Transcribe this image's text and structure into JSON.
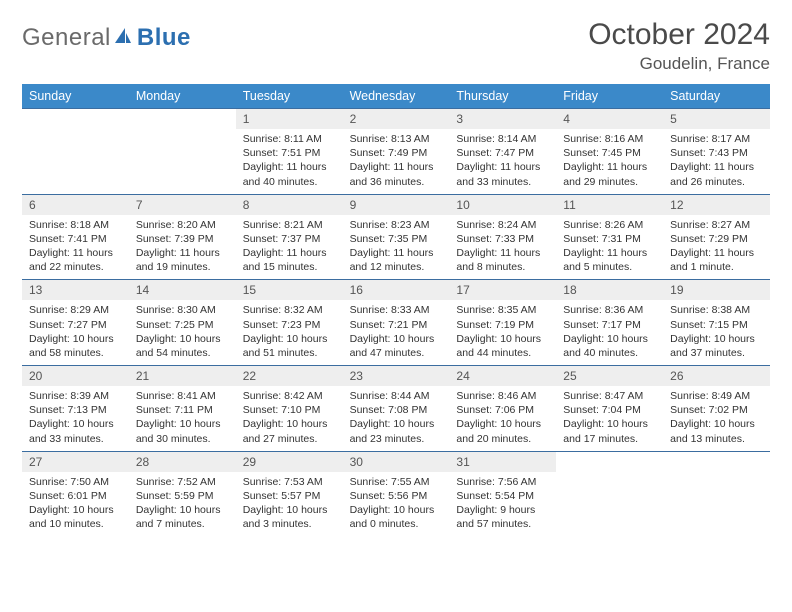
{
  "logo": {
    "text_general": "General",
    "text_blue": "Blue"
  },
  "title": "October 2024",
  "location": "Goudelin, France",
  "colors": {
    "header_bg": "#3b89c9",
    "header_text": "#ffffff",
    "week_border": "#3b6da0",
    "daynum_bg": "#eeeeee",
    "logo_gray": "#6a6a6a",
    "logo_blue": "#2c6fb0"
  },
  "weekdays": [
    "Sunday",
    "Monday",
    "Tuesday",
    "Wednesday",
    "Thursday",
    "Friday",
    "Saturday"
  ],
  "weeks": [
    [
      null,
      null,
      {
        "n": "1",
        "sr": "Sunrise: 8:11 AM",
        "ss": "Sunset: 7:51 PM",
        "dl": "Daylight: 11 hours and 40 minutes."
      },
      {
        "n": "2",
        "sr": "Sunrise: 8:13 AM",
        "ss": "Sunset: 7:49 PM",
        "dl": "Daylight: 11 hours and 36 minutes."
      },
      {
        "n": "3",
        "sr": "Sunrise: 8:14 AM",
        "ss": "Sunset: 7:47 PM",
        "dl": "Daylight: 11 hours and 33 minutes."
      },
      {
        "n": "4",
        "sr": "Sunrise: 8:16 AM",
        "ss": "Sunset: 7:45 PM",
        "dl": "Daylight: 11 hours and 29 minutes."
      },
      {
        "n": "5",
        "sr": "Sunrise: 8:17 AM",
        "ss": "Sunset: 7:43 PM",
        "dl": "Daylight: 11 hours and 26 minutes."
      }
    ],
    [
      {
        "n": "6",
        "sr": "Sunrise: 8:18 AM",
        "ss": "Sunset: 7:41 PM",
        "dl": "Daylight: 11 hours and 22 minutes."
      },
      {
        "n": "7",
        "sr": "Sunrise: 8:20 AM",
        "ss": "Sunset: 7:39 PM",
        "dl": "Daylight: 11 hours and 19 minutes."
      },
      {
        "n": "8",
        "sr": "Sunrise: 8:21 AM",
        "ss": "Sunset: 7:37 PM",
        "dl": "Daylight: 11 hours and 15 minutes."
      },
      {
        "n": "9",
        "sr": "Sunrise: 8:23 AM",
        "ss": "Sunset: 7:35 PM",
        "dl": "Daylight: 11 hours and 12 minutes."
      },
      {
        "n": "10",
        "sr": "Sunrise: 8:24 AM",
        "ss": "Sunset: 7:33 PM",
        "dl": "Daylight: 11 hours and 8 minutes."
      },
      {
        "n": "11",
        "sr": "Sunrise: 8:26 AM",
        "ss": "Sunset: 7:31 PM",
        "dl": "Daylight: 11 hours and 5 minutes."
      },
      {
        "n": "12",
        "sr": "Sunrise: 8:27 AM",
        "ss": "Sunset: 7:29 PM",
        "dl": "Daylight: 11 hours and 1 minute."
      }
    ],
    [
      {
        "n": "13",
        "sr": "Sunrise: 8:29 AM",
        "ss": "Sunset: 7:27 PM",
        "dl": "Daylight: 10 hours and 58 minutes."
      },
      {
        "n": "14",
        "sr": "Sunrise: 8:30 AM",
        "ss": "Sunset: 7:25 PM",
        "dl": "Daylight: 10 hours and 54 minutes."
      },
      {
        "n": "15",
        "sr": "Sunrise: 8:32 AM",
        "ss": "Sunset: 7:23 PM",
        "dl": "Daylight: 10 hours and 51 minutes."
      },
      {
        "n": "16",
        "sr": "Sunrise: 8:33 AM",
        "ss": "Sunset: 7:21 PM",
        "dl": "Daylight: 10 hours and 47 minutes."
      },
      {
        "n": "17",
        "sr": "Sunrise: 8:35 AM",
        "ss": "Sunset: 7:19 PM",
        "dl": "Daylight: 10 hours and 44 minutes."
      },
      {
        "n": "18",
        "sr": "Sunrise: 8:36 AM",
        "ss": "Sunset: 7:17 PM",
        "dl": "Daylight: 10 hours and 40 minutes."
      },
      {
        "n": "19",
        "sr": "Sunrise: 8:38 AM",
        "ss": "Sunset: 7:15 PM",
        "dl": "Daylight: 10 hours and 37 minutes."
      }
    ],
    [
      {
        "n": "20",
        "sr": "Sunrise: 8:39 AM",
        "ss": "Sunset: 7:13 PM",
        "dl": "Daylight: 10 hours and 33 minutes."
      },
      {
        "n": "21",
        "sr": "Sunrise: 8:41 AM",
        "ss": "Sunset: 7:11 PM",
        "dl": "Daylight: 10 hours and 30 minutes."
      },
      {
        "n": "22",
        "sr": "Sunrise: 8:42 AM",
        "ss": "Sunset: 7:10 PM",
        "dl": "Daylight: 10 hours and 27 minutes."
      },
      {
        "n": "23",
        "sr": "Sunrise: 8:44 AM",
        "ss": "Sunset: 7:08 PM",
        "dl": "Daylight: 10 hours and 23 minutes."
      },
      {
        "n": "24",
        "sr": "Sunrise: 8:46 AM",
        "ss": "Sunset: 7:06 PM",
        "dl": "Daylight: 10 hours and 20 minutes."
      },
      {
        "n": "25",
        "sr": "Sunrise: 8:47 AM",
        "ss": "Sunset: 7:04 PM",
        "dl": "Daylight: 10 hours and 17 minutes."
      },
      {
        "n": "26",
        "sr": "Sunrise: 8:49 AM",
        "ss": "Sunset: 7:02 PM",
        "dl": "Daylight: 10 hours and 13 minutes."
      }
    ],
    [
      {
        "n": "27",
        "sr": "Sunrise: 7:50 AM",
        "ss": "Sunset: 6:01 PM",
        "dl": "Daylight: 10 hours and 10 minutes."
      },
      {
        "n": "28",
        "sr": "Sunrise: 7:52 AM",
        "ss": "Sunset: 5:59 PM",
        "dl": "Daylight: 10 hours and 7 minutes."
      },
      {
        "n": "29",
        "sr": "Sunrise: 7:53 AM",
        "ss": "Sunset: 5:57 PM",
        "dl": "Daylight: 10 hours and 3 minutes."
      },
      {
        "n": "30",
        "sr": "Sunrise: 7:55 AM",
        "ss": "Sunset: 5:56 PM",
        "dl": "Daylight: 10 hours and 0 minutes."
      },
      {
        "n": "31",
        "sr": "Sunrise: 7:56 AM",
        "ss": "Sunset: 5:54 PM",
        "dl": "Daylight: 9 hours and 57 minutes."
      },
      null,
      null
    ]
  ]
}
